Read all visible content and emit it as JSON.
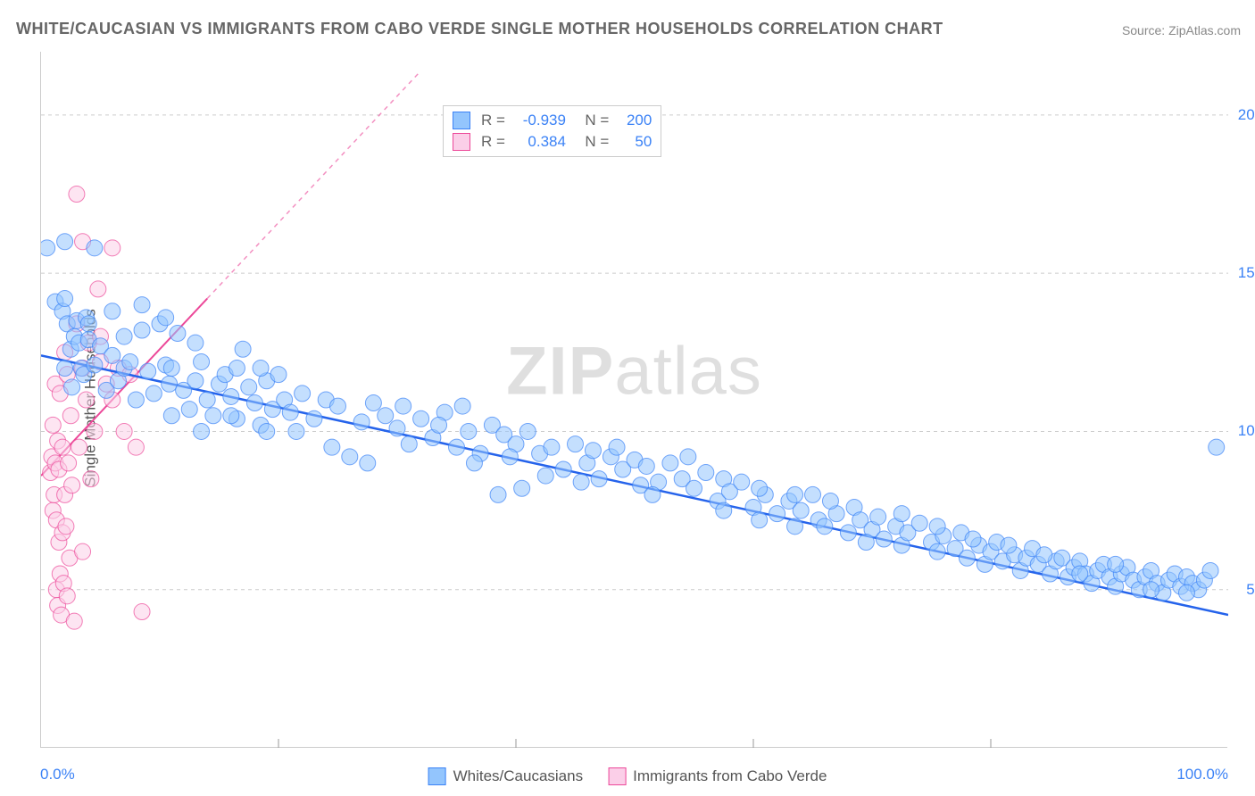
{
  "title": "WHITE/CAUCASIAN VS IMMIGRANTS FROM CABO VERDE SINGLE MOTHER HOUSEHOLDS CORRELATION CHART",
  "source": "Source: ZipAtlas.com",
  "watermark_bold": "ZIP",
  "watermark_rest": "atlas",
  "chart": {
    "type": "scatter",
    "xlim": [
      0,
      100
    ],
    "ylim": [
      0,
      22
    ],
    "x_tick_major": 20,
    "y_grid_lines": [
      5,
      10,
      15,
      20
    ],
    "y_tick_labels": [
      "5.0%",
      "10.0%",
      "15.0%",
      "20.0%"
    ],
    "x_tick_left": "0.0%",
    "x_tick_right": "100.0%",
    "ylabel": "Single Mother Households",
    "background_color": "#ffffff",
    "grid_color": "#cccccc",
    "grid_dash": "4,4",
    "series": [
      {
        "name": "Whites/Caucasians",
        "label": "Whites/Caucasians",
        "color_fill": "#93c5fd",
        "color_stroke": "#3b82f6",
        "fill_opacity": 0.55,
        "marker_r": 9,
        "trend": {
          "x1": 0,
          "y1": 12.4,
          "x2": 100,
          "y2": 4.2,
          "color": "#2563eb",
          "width": 2.5,
          "dash": "none"
        },
        "R": "-0.939",
        "N": "200",
        "points": [
          [
            0.5,
            15.8
          ],
          [
            1.2,
            14.1
          ],
          [
            1.8,
            13.8
          ],
          [
            2.0,
            14.2
          ],
          [
            2.0,
            16.0
          ],
          [
            2.0,
            12.0
          ],
          [
            2.2,
            13.4
          ],
          [
            2.5,
            12.6
          ],
          [
            2.6,
            11.4
          ],
          [
            2.8,
            13.0
          ],
          [
            3.0,
            13.5
          ],
          [
            3.2,
            12.8
          ],
          [
            3.4,
            12.0
          ],
          [
            3.6,
            11.8
          ],
          [
            3.8,
            13.6
          ],
          [
            4.0,
            12.9
          ],
          [
            4.0,
            13.4
          ],
          [
            4.5,
            12.1
          ],
          [
            5.0,
            12.7
          ],
          [
            5.5,
            11.3
          ],
          [
            6.0,
            12.4
          ],
          [
            6.5,
            11.6
          ],
          [
            7.0,
            13.0
          ],
          [
            7.0,
            12.0
          ],
          [
            7.5,
            12.2
          ],
          [
            8.0,
            11.0
          ],
          [
            8.5,
            13.2
          ],
          [
            9.0,
            11.9
          ],
          [
            9.5,
            11.2
          ],
          [
            10.0,
            13.4
          ],
          [
            10.5,
            12.1
          ],
          [
            10.8,
            11.5
          ],
          [
            11.0,
            12.0
          ],
          [
            11.5,
            13.1
          ],
          [
            12.0,
            11.3
          ],
          [
            12.5,
            10.7
          ],
          [
            13.0,
            11.6
          ],
          [
            13.5,
            12.2
          ],
          [
            14.0,
            11.0
          ],
          [
            14.5,
            10.5
          ],
          [
            15.0,
            11.5
          ],
          [
            15.5,
            11.8
          ],
          [
            16.0,
            11.1
          ],
          [
            16.5,
            10.4
          ],
          [
            17.0,
            12.6
          ],
          [
            17.5,
            11.4
          ],
          [
            18.0,
            10.9
          ],
          [
            18.5,
            10.2
          ],
          [
            19.0,
            11.6
          ],
          [
            19.5,
            10.7
          ],
          [
            20.0,
            11.8
          ],
          [
            20.5,
            11.0
          ],
          [
            21.0,
            10.6
          ],
          [
            22.0,
            11.2
          ],
          [
            23.0,
            10.4
          ],
          [
            24.0,
            11.0
          ],
          [
            25.0,
            10.8
          ],
          [
            26.0,
            9.2
          ],
          [
            27.0,
            10.3
          ],
          [
            28.0,
            10.9
          ],
          [
            29.0,
            10.5
          ],
          [
            30.0,
            10.1
          ],
          [
            31.0,
            9.6
          ],
          [
            32.0,
            10.4
          ],
          [
            33.0,
            9.8
          ],
          [
            34.0,
            10.6
          ],
          [
            35.0,
            9.5
          ],
          [
            35.5,
            10.8
          ],
          [
            36.0,
            10.0
          ],
          [
            37.0,
            9.3
          ],
          [
            38.0,
            10.2
          ],
          [
            38.5,
            8.0
          ],
          [
            39.0,
            9.9
          ],
          [
            40.0,
            9.6
          ],
          [
            40.5,
            8.2
          ],
          [
            41.0,
            10.0
          ],
          [
            42.0,
            9.3
          ],
          [
            43.0,
            9.5
          ],
          [
            44.0,
            8.8
          ],
          [
            45.0,
            9.6
          ],
          [
            46.0,
            9.0
          ],
          [
            46.5,
            9.4
          ],
          [
            47.0,
            8.5
          ],
          [
            48.0,
            9.2
          ],
          [
            49.0,
            8.8
          ],
          [
            50.0,
            9.1
          ],
          [
            50.5,
            8.3
          ],
          [
            51.0,
            8.9
          ],
          [
            52.0,
            8.4
          ],
          [
            53.0,
            9.0
          ],
          [
            54.0,
            8.5
          ],
          [
            55.0,
            8.2
          ],
          [
            56.0,
            8.7
          ],
          [
            57.0,
            7.8
          ],
          [
            57.5,
            8.5
          ],
          [
            58.0,
            8.1
          ],
          [
            59.0,
            8.4
          ],
          [
            60.0,
            7.6
          ],
          [
            60.5,
            7.2
          ],
          [
            61.0,
            8.0
          ],
          [
            62.0,
            7.4
          ],
          [
            63.0,
            7.8
          ],
          [
            63.5,
            7.0
          ],
          [
            64.0,
            7.5
          ],
          [
            65.0,
            8.0
          ],
          [
            65.5,
            7.2
          ],
          [
            66.0,
            7.0
          ],
          [
            67.0,
            7.4
          ],
          [
            68.0,
            6.8
          ],
          [
            68.5,
            7.6
          ],
          [
            69.0,
            7.2
          ],
          [
            70.0,
            6.9
          ],
          [
            70.5,
            7.3
          ],
          [
            71.0,
            6.6
          ],
          [
            72.0,
            7.0
          ],
          [
            72.5,
            6.4
          ],
          [
            73.0,
            6.8
          ],
          [
            74.0,
            7.1
          ],
          [
            75.0,
            6.5
          ],
          [
            75.5,
            6.2
          ],
          [
            76.0,
            6.7
          ],
          [
            77.0,
            6.3
          ],
          [
            77.5,
            6.8
          ],
          [
            78.0,
            6.0
          ],
          [
            79.0,
            6.4
          ],
          [
            79.5,
            5.8
          ],
          [
            80.0,
            6.2
          ],
          [
            80.5,
            6.5
          ],
          [
            81.0,
            5.9
          ],
          [
            82.0,
            6.1
          ],
          [
            82.5,
            5.6
          ],
          [
            83.0,
            6.0
          ],
          [
            83.5,
            6.3
          ],
          [
            84.0,
            5.8
          ],
          [
            85.0,
            5.5
          ],
          [
            85.5,
            5.9
          ],
          [
            86.0,
            6.0
          ],
          [
            86.5,
            5.4
          ],
          [
            87.0,
            5.7
          ],
          [
            87.5,
            5.9
          ],
          [
            88.0,
            5.5
          ],
          [
            88.5,
            5.2
          ],
          [
            89.0,
            5.6
          ],
          [
            89.5,
            5.8
          ],
          [
            90.0,
            5.4
          ],
          [
            90.5,
            5.1
          ],
          [
            91.0,
            5.5
          ],
          [
            91.5,
            5.7
          ],
          [
            92.0,
            5.3
          ],
          [
            92.5,
            5.0
          ],
          [
            93.0,
            5.4
          ],
          [
            93.5,
            5.6
          ],
          [
            94.0,
            5.2
          ],
          [
            94.5,
            4.9
          ],
          [
            95.0,
            5.3
          ],
          [
            95.5,
            5.5
          ],
          [
            96.0,
            5.1
          ],
          [
            96.5,
            5.4
          ],
          [
            97.0,
            5.2
          ],
          [
            97.5,
            5.0
          ],
          [
            98.0,
            5.3
          ],
          [
            98.5,
            5.6
          ],
          [
            99.0,
            9.5
          ],
          [
            10.5,
            13.6
          ],
          [
            13.0,
            12.8
          ],
          [
            16.5,
            12.0
          ],
          [
            19.0,
            10.0
          ],
          [
            21.5,
            10.0
          ],
          [
            24.5,
            9.5
          ],
          [
            27.5,
            9.0
          ],
          [
            30.5,
            10.8
          ],
          [
            33.5,
            10.2
          ],
          [
            36.5,
            9.0
          ],
          [
            39.5,
            9.2
          ],
          [
            42.5,
            8.6
          ],
          [
            45.5,
            8.4
          ],
          [
            48.5,
            9.5
          ],
          [
            51.5,
            8.0
          ],
          [
            54.5,
            9.2
          ],
          [
            57.5,
            7.5
          ],
          [
            60.5,
            8.2
          ],
          [
            63.5,
            8.0
          ],
          [
            66.5,
            7.8
          ],
          [
            69.5,
            6.5
          ],
          [
            72.5,
            7.4
          ],
          [
            75.5,
            7.0
          ],
          [
            78.5,
            6.6
          ],
          [
            81.5,
            6.4
          ],
          [
            84.5,
            6.1
          ],
          [
            87.5,
            5.5
          ],
          [
            90.5,
            5.8
          ],
          [
            93.5,
            5.0
          ],
          [
            96.5,
            4.9
          ],
          [
            4.5,
            15.8
          ],
          [
            6.0,
            13.8
          ],
          [
            8.5,
            14.0
          ],
          [
            11.0,
            10.5
          ],
          [
            13.5,
            10.0
          ],
          [
            16.0,
            10.5
          ],
          [
            18.5,
            12.0
          ]
        ]
      },
      {
        "name": "Immigrants from Cabo Verde",
        "label": "Immigrants from Cabo Verde",
        "color_fill": "#fbcfe8",
        "color_stroke": "#ec4899",
        "fill_opacity": 0.55,
        "marker_r": 9,
        "trend": {
          "x1": 0,
          "y1": 8.6,
          "x2": 14,
          "y2": 14.2,
          "extend_x": 32,
          "extend_y": 21.4,
          "color": "#ec4899",
          "width": 2,
          "dash": "5,5"
        },
        "R": "0.384",
        "N": "50",
        "points": [
          [
            0.8,
            8.7
          ],
          [
            0.9,
            9.2
          ],
          [
            1.0,
            7.5
          ],
          [
            1.0,
            10.2
          ],
          [
            1.1,
            8.0
          ],
          [
            1.2,
            9.0
          ],
          [
            1.2,
            11.5
          ],
          [
            1.3,
            7.2
          ],
          [
            1.3,
            5.0
          ],
          [
            1.4,
            4.5
          ],
          [
            1.4,
            9.7
          ],
          [
            1.5,
            6.5
          ],
          [
            1.5,
            8.8
          ],
          [
            1.6,
            5.5
          ],
          [
            1.6,
            11.2
          ],
          [
            1.7,
            4.2
          ],
          [
            1.8,
            6.8
          ],
          [
            1.8,
            9.5
          ],
          [
            1.9,
            5.2
          ],
          [
            2.0,
            8.0
          ],
          [
            2.0,
            12.5
          ],
          [
            2.1,
            7.0
          ],
          [
            2.2,
            4.8
          ],
          [
            2.2,
            11.8
          ],
          [
            2.3,
            9.0
          ],
          [
            2.4,
            6.0
          ],
          [
            2.5,
            10.5
          ],
          [
            2.6,
            8.3
          ],
          [
            2.8,
            4.0
          ],
          [
            3.0,
            13.4
          ],
          [
            3.0,
            17.5
          ],
          [
            3.2,
            9.5
          ],
          [
            3.5,
            16.0
          ],
          [
            3.5,
            6.2
          ],
          [
            3.8,
            11.0
          ],
          [
            4.0,
            12.8
          ],
          [
            4.2,
            8.5
          ],
          [
            4.5,
            10.0
          ],
          [
            5.0,
            13.0
          ],
          [
            5.0,
            12.2
          ],
          [
            5.5,
            11.5
          ],
          [
            6.0,
            11.0
          ],
          [
            6.5,
            12.0
          ],
          [
            7.0,
            10.0
          ],
          [
            7.5,
            11.8
          ],
          [
            8.0,
            9.5
          ],
          [
            8.5,
            4.3
          ],
          [
            6.0,
            15.8
          ],
          [
            4.8,
            14.5
          ],
          [
            3.5,
            12.0
          ]
        ]
      }
    ]
  }
}
